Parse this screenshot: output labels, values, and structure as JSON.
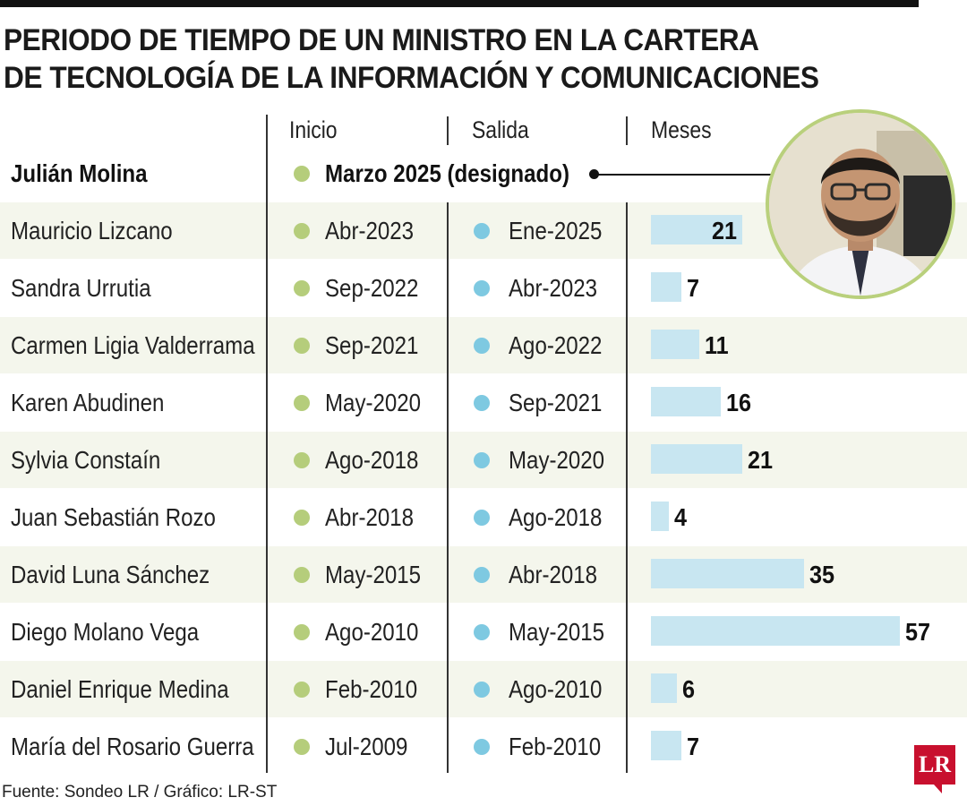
{
  "title_line1": "PERIODO DE TIEMPO DE UN MINISTRO EN LA CARTERA",
  "title_line2": "DE TECNOLOGÍA DE LA INFORMACIÓN Y COMUNICACIONES",
  "columns": {
    "start": "Inicio",
    "end": "Salida",
    "months": "Meses"
  },
  "featured": {
    "name": "Julián Molina",
    "start": "Marzo 2025 (designado)"
  },
  "source": "Fuente: Sondeo LR / Gráfico: LR-ST",
  "logo": "LR",
  "colors": {
    "start_dot": "#b5cd7b",
    "end_dot": "#7ec9e1",
    "bar": "#c8e6f1",
    "photo_ring": "#b9d07c",
    "logo": "#c8102e",
    "row_shade": "#f4f6ec"
  },
  "chart_data": {
    "type": "bar",
    "orientation": "horizontal",
    "categories": [
      "Mauricio Lizcano",
      "Sandra Urrutia",
      "Carmen Ligia Valderrama",
      "Karen Abudinen",
      "Sylvia Constaín",
      "Juan Sebastián Rozo",
      "David Luna Sánchez",
      "Diego Molano Vega",
      "Daniel Enrique Medina",
      "María del Rosario Guerra"
    ],
    "start": [
      "Abr-2023",
      "Sep-2022",
      "Sep-2021",
      "May-2020",
      "Ago-2018",
      "Abr-2018",
      "May-2015",
      "Ago-2010",
      "Feb-2010",
      "Jul-2009"
    ],
    "end": [
      "Ene-2025",
      "Abr-2023",
      "Ago-2022",
      "Sep-2021",
      "May-2020",
      "Ago-2018",
      "Abr-2018",
      "May-2015",
      "Ago-2010",
      "Feb-2010"
    ],
    "values": [
      21,
      7,
      11,
      16,
      21,
      4,
      35,
      57,
      6,
      7
    ],
    "title": "PERIODO DE TIEMPO DE UN MINISTRO EN LA CARTERA DE TECNOLOGÍA DE LA INFORMACIÓN Y COMUNICACIONES",
    "xlabel": "",
    "ylabel": "Meses",
    "xlim": [
      0,
      57
    ],
    "grid": false
  }
}
